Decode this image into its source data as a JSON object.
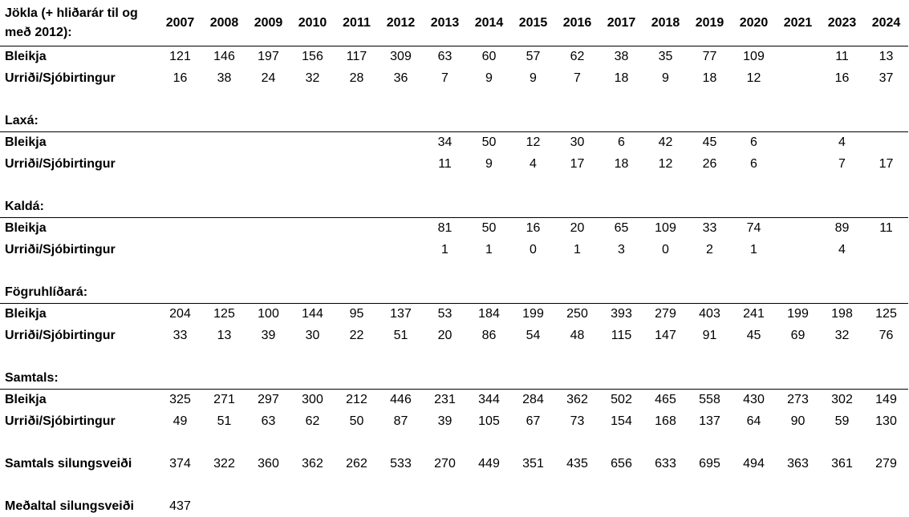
{
  "table": {
    "corner": "Jökla (+ hliðarár til og með 2012):",
    "years": [
      "2007",
      "2008",
      "2009",
      "2010",
      "2011",
      "2012",
      "2013",
      "2014",
      "2015",
      "2016",
      "2017",
      "2018",
      "2019",
      "2020",
      "2021",
      "2023",
      "2024"
    ],
    "groups": [
      {
        "rows": [
          {
            "label": "Bleikja",
            "values": [
              121,
              146,
              197,
              156,
              117,
              309,
              63,
              60,
              57,
              62,
              38,
              35,
              77,
              109,
              null,
              11,
              13
            ]
          },
          {
            "label": "Urriði/Sjóbirtingur",
            "values": [
              16,
              38,
              24,
              32,
              28,
              36,
              7,
              9,
              9,
              7,
              18,
              9,
              18,
              12,
              null,
              16,
              37
            ]
          }
        ]
      },
      {
        "title": "Laxá:",
        "rows": [
          {
            "label": "Bleikja",
            "values": [
              null,
              null,
              null,
              null,
              null,
              null,
              34,
              50,
              12,
              30,
              6,
              42,
              45,
              6,
              null,
              4,
              null
            ]
          },
          {
            "label": "Urriði/Sjóbirtingur",
            "values": [
              null,
              null,
              null,
              null,
              null,
              null,
              11,
              9,
              4,
              17,
              18,
              12,
              26,
              6,
              null,
              7,
              17
            ]
          }
        ]
      },
      {
        "title": "Kaldá:",
        "rows": [
          {
            "label": "Bleikja",
            "values": [
              null,
              null,
              null,
              null,
              null,
              null,
              81,
              50,
              16,
              20,
              65,
              109,
              33,
              74,
              null,
              89,
              11
            ]
          },
          {
            "label": "Urriði/Sjóbirtingur",
            "values": [
              null,
              null,
              null,
              null,
              null,
              null,
              1,
              1,
              0,
              1,
              3,
              0,
              2,
              1,
              null,
              4,
              null
            ]
          }
        ]
      },
      {
        "title": "Fögruhlíðará:",
        "rows": [
          {
            "label": "Bleikja",
            "values": [
              204,
              125,
              100,
              144,
              95,
              137,
              53,
              184,
              199,
              250,
              393,
              279,
              403,
              241,
              199,
              198,
              125
            ]
          },
          {
            "label": "Urriði/Sjóbirtingur",
            "values": [
              33,
              13,
              39,
              30,
              22,
              51,
              20,
              86,
              54,
              48,
              115,
              147,
              91,
              45,
              69,
              32,
              76
            ]
          }
        ]
      },
      {
        "title": "Samtals:",
        "rows": [
          {
            "label": "Bleikja",
            "values": [
              325,
              271,
              297,
              300,
              212,
              446,
              231,
              344,
              284,
              362,
              502,
              465,
              558,
              430,
              273,
              302,
              149
            ]
          },
          {
            "label": "Urriði/Sjóbirtingur",
            "values": [
              49,
              51,
              63,
              62,
              50,
              87,
              39,
              105,
              67,
              73,
              154,
              168,
              137,
              64,
              90,
              59,
              130
            ]
          }
        ]
      }
    ],
    "total": {
      "label": "Samtals silungsveiði",
      "values": [
        374,
        322,
        360,
        362,
        262,
        533,
        270,
        449,
        351,
        435,
        656,
        633,
        695,
        494,
        363,
        361,
        279
      ]
    },
    "average": {
      "label": "Meðaltal silungsveiði",
      "value": 437
    }
  }
}
